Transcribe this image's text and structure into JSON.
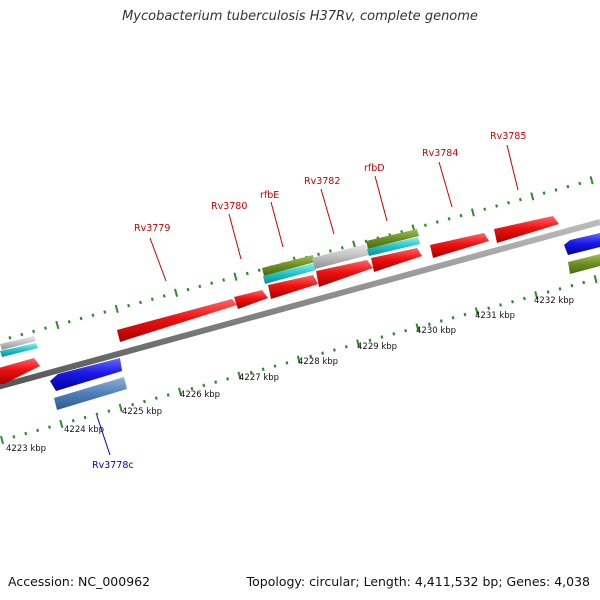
{
  "header": {
    "title": "Mycobacterium tuberculosis H37Rv, complete genome"
  },
  "footer": {
    "accession": "Accession: NC_000962",
    "summary": "Topology: circular; Length: 4,411,532 bp; Genes: 4,038"
  },
  "scale_labels": [
    "4223 kbp",
    "4224 kbp",
    "4225 kbp",
    "4226 kbp",
    "4227 kbp",
    "4228 kbp",
    "4229 kbp",
    "4230 kbp",
    "4231 kbp",
    "4232 kbp"
  ],
  "gene_labels": [
    {
      "text": "Rv3778c",
      "strand": "reverse",
      "color": "#0000cc"
    },
    {
      "text": "Rv3779",
      "strand": "forward",
      "color": "#cc0000"
    },
    {
      "text": "Rv3780",
      "strand": "forward",
      "color": "#cc0000"
    },
    {
      "text": "rfbE",
      "strand": "forward",
      "color": "#cc0000"
    },
    {
      "text": "Rv3782",
      "strand": "forward",
      "color": "#cc0000"
    },
    {
      "text": "rfbD",
      "strand": "forward",
      "color": "#cc0000"
    },
    {
      "text": "Rv3784",
      "strand": "forward",
      "color": "#cc0000"
    },
    {
      "text": "Rv3785",
      "strand": "forward",
      "color": "#cc0000"
    }
  ],
  "colors": {
    "forward_cds": "#ee1111",
    "reverse_cds": "#1a1ae6",
    "reverse_cds_light": "#4f7fb8",
    "cog_green": "#6b8e23",
    "cog_cyan": "#20c4c8",
    "cog_gray": "#c0c0c0",
    "backbone": "#888888",
    "ticks": "#2e8b2e"
  }
}
